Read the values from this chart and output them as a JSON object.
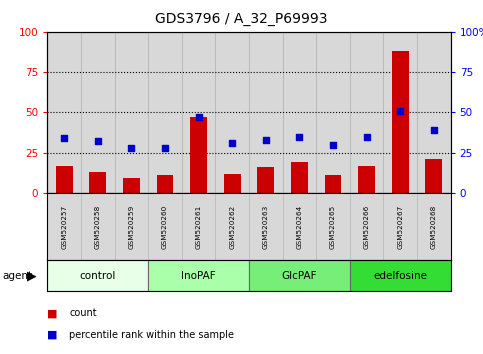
{
  "title": "GDS3796 / A_32_P69993",
  "samples": [
    "GSM520257",
    "GSM520258",
    "GSM520259",
    "GSM520260",
    "GSM520261",
    "GSM520262",
    "GSM520263",
    "GSM520264",
    "GSM520265",
    "GSM520266",
    "GSM520267",
    "GSM520268"
  ],
  "bar_values": [
    17,
    13,
    9,
    11,
    47,
    12,
    16,
    19,
    11,
    17,
    88,
    21
  ],
  "dot_values": [
    34,
    32,
    28,
    28,
    47,
    31,
    33,
    35,
    30,
    35,
    51,
    39
  ],
  "groups": [
    {
      "label": "control",
      "start": 0,
      "end": 3,
      "color": "#e8ffe8"
    },
    {
      "label": "InoPAF",
      "start": 3,
      "end": 6,
      "color": "#aaffaa"
    },
    {
      "label": "GlcPAF",
      "start": 6,
      "end": 9,
      "color": "#77ee77"
    },
    {
      "label": "edelfosine",
      "start": 9,
      "end": 12,
      "color": "#33dd33"
    }
  ],
  "bar_color": "#cc0000",
  "dot_color": "#0000cc",
  "ylim": [
    0,
    100
  ],
  "grid_values": [
    25,
    50,
    75
  ],
  "legend_items": [
    {
      "color": "#cc0000",
      "label": "count"
    },
    {
      "color": "#0000cc",
      "label": "percentile rank within the sample"
    }
  ],
  "agent_label": "agent",
  "background_color": "#ffffff",
  "bar_area_bg": "#d8d8d8",
  "right_axis_suffix": "%"
}
